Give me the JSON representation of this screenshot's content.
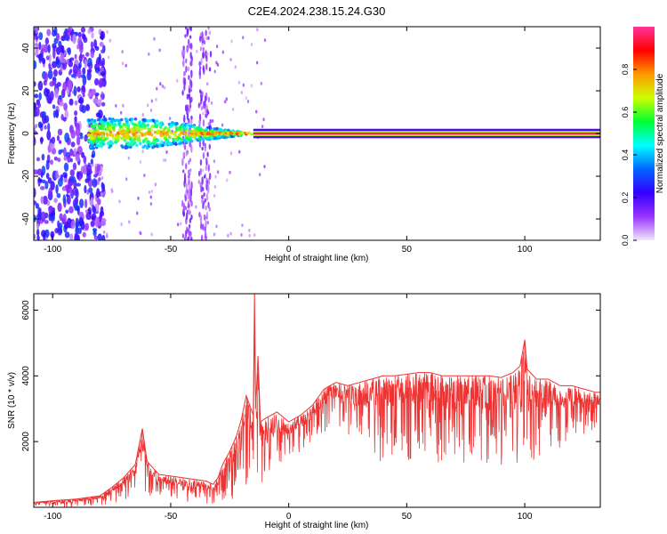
{
  "title": "C2E4.2024.238.15.24.G30",
  "chart_data": [
    {
      "type": "heatmap",
      "title": "C2E4.2024.238.15.24.G30",
      "xlabel": "Height of straight line (km)",
      "ylabel": "Frequency (Hz)",
      "xlim": [
        -108,
        132
      ],
      "ylim": [
        -50,
        50
      ],
      "x_ticks": [
        -100,
        -50,
        0,
        50,
        100
      ],
      "y_ticks": [
        -40,
        -20,
        0,
        20,
        40
      ],
      "colorbar": {
        "label": "Normalized spectral amplitude",
        "range": [
          0.0,
          1.0
        ],
        "ticks": [
          0.0,
          0.2,
          0.4,
          0.6,
          0.8
        ],
        "colormap": [
          "#f2e6fc",
          "#9933ff",
          "#3300ff",
          "#0066ff",
          "#00ffff",
          "#00ff33",
          "#ccff00",
          "#ff9900",
          "#ff0000",
          "#ff3399"
        ]
      },
      "features": [
        {
          "description": "carrier line",
          "x": [
            -15,
            132
          ],
          "frequency_hz": 0,
          "amplitude": 0.95
        },
        {
          "description": "scintillation spread",
          "x": [
            -85,
            -35
          ],
          "frequency_hz": [
            -6,
            6
          ],
          "amplitude": 0.45
        },
        {
          "description": "diffuse noise",
          "x": [
            -108,
            -80
          ],
          "frequency_hz": [
            -50,
            50
          ],
          "amplitude": 0.15
        }
      ]
    },
    {
      "type": "line",
      "xlabel": "Height of straight line (km)",
      "ylabel": "SNR (10 * v/v)",
      "xlim": [
        -108,
        132
      ],
      "ylim": [
        0,
        6500
      ],
      "x_ticks": [
        -100,
        -50,
        0,
        50,
        100
      ],
      "y_ticks": [
        2000,
        4000,
        6000
      ],
      "color": "#ee3333",
      "series": [
        {
          "x": [
            -108,
            -100,
            -90,
            -80,
            -75,
            -70,
            -65,
            -62,
            -60,
            -55,
            -50,
            -45,
            -40,
            -35,
            -32,
            -30,
            -28,
            -25,
            -22,
            -20,
            -18,
            -16,
            -15,
            -14.5,
            -14,
            -13,
            -12,
            -10,
            -5,
            0,
            5,
            10,
            15,
            20,
            25,
            30,
            35,
            40,
            45,
            50,
            55,
            60,
            65,
            70,
            75,
            80,
            85,
            90,
            95,
            98,
            100,
            101,
            105,
            110,
            115,
            120,
            125,
            130,
            132
          ],
          "y": [
            150,
            200,
            250,
            350,
            600,
            900,
            1300,
            2400,
            1400,
            1000,
            950,
            900,
            850,
            800,
            700,
            900,
            1300,
            1700,
            2200,
            2700,
            3400,
            3000,
            2800,
            6500,
            3000,
            4600,
            2600,
            2700,
            2900,
            2600,
            2800,
            3100,
            3600,
            3800,
            3700,
            3800,
            3900,
            4000,
            4000,
            4050,
            4100,
            4100,
            4000,
            4000,
            4000,
            4000,
            4000,
            3950,
            4100,
            4300,
            5100,
            4200,
            3900,
            3900,
            3700,
            3700,
            3600,
            3500,
            3500
          ],
          "lower_envelope": [
            0,
            0,
            0,
            50,
            100,
            200,
            400,
            500,
            300,
            200,
            150,
            150,
            150,
            100,
            100,
            100,
            200,
            200,
            300,
            400,
            600,
            100,
            200,
            2000,
            300,
            1000,
            600,
            800,
            1200,
            1500,
            1700,
            2000,
            2300,
            2400,
            2100,
            1600,
            1300,
            1300,
            1400,
            1400,
            1500,
            1600,
            1200,
            1300,
            1200,
            900,
            1300,
            1200,
            1100,
            1000,
            1500,
            1300,
            800,
            1400,
            1600,
            1900,
            1900,
            2000,
            2000
          ]
        }
      ]
    }
  ]
}
